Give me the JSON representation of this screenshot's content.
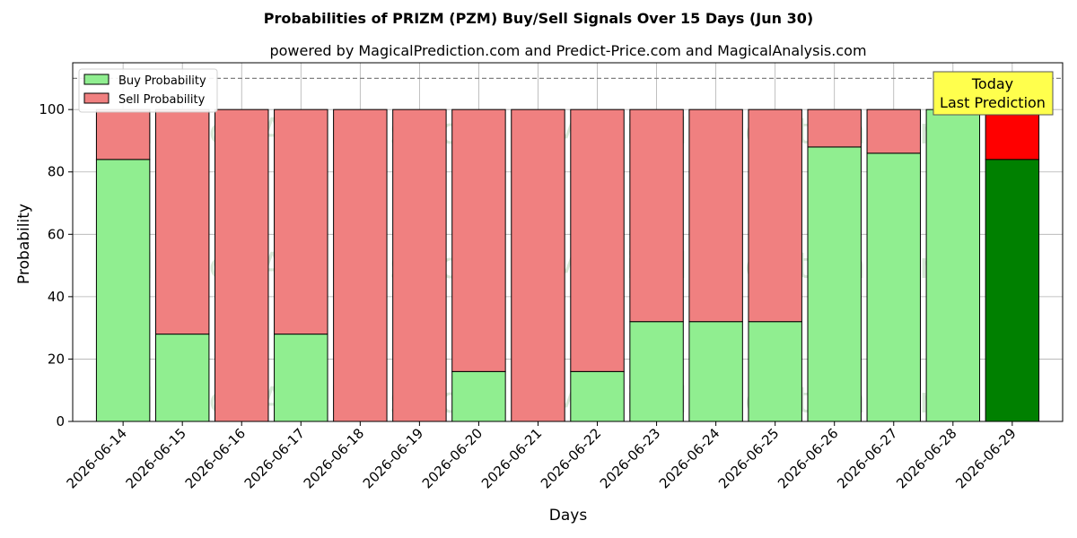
{
  "chart_data": {
    "type": "bar",
    "stacked": true,
    "title": "Probabilities of PRIZM (PZM) Buy/Sell Signals Over 15 Days (Jun 30)",
    "subtitle": "powered by MagicalPrediction.com and Predict-Price.com and MagicalAnalysis.com",
    "xlabel": "Days",
    "ylabel": "Probability",
    "ylim": [
      0,
      115
    ],
    "yticks": [
      0,
      20,
      40,
      60,
      80,
      100
    ],
    "grid": true,
    "legend_position": "top-left",
    "reference_line": 110,
    "categories": [
      "2026-06-14",
      "2026-06-15",
      "2026-06-16",
      "2026-06-17",
      "2026-06-18",
      "2026-06-19",
      "2026-06-20",
      "2026-06-21",
      "2026-06-22",
      "2026-06-23",
      "2026-06-24",
      "2026-06-25",
      "2026-06-26",
      "2026-06-27",
      "2026-06-28",
      "2026-06-29"
    ],
    "series": [
      {
        "name": "Buy Probability",
        "color": "#90ee90",
        "highlight_color": "#008000",
        "values": [
          84,
          28,
          0,
          28,
          0,
          0,
          16,
          0,
          16,
          32,
          32,
          32,
          88,
          86,
          100,
          84
        ]
      },
      {
        "name": "Sell Probability",
        "color": "#f08080",
        "highlight_color": "#ff0000",
        "values": [
          16,
          72,
          100,
          72,
          100,
          100,
          84,
          100,
          84,
          68,
          68,
          68,
          12,
          14,
          0,
          16
        ]
      }
    ],
    "highlight_index": 15,
    "annotation": {
      "line1": "Today",
      "line2": "Last Prediction",
      "color": "#ffff4d"
    },
    "watermarks": [
      "MagicalAnalysis.com",
      "MagicalPrediction.com"
    ]
  }
}
